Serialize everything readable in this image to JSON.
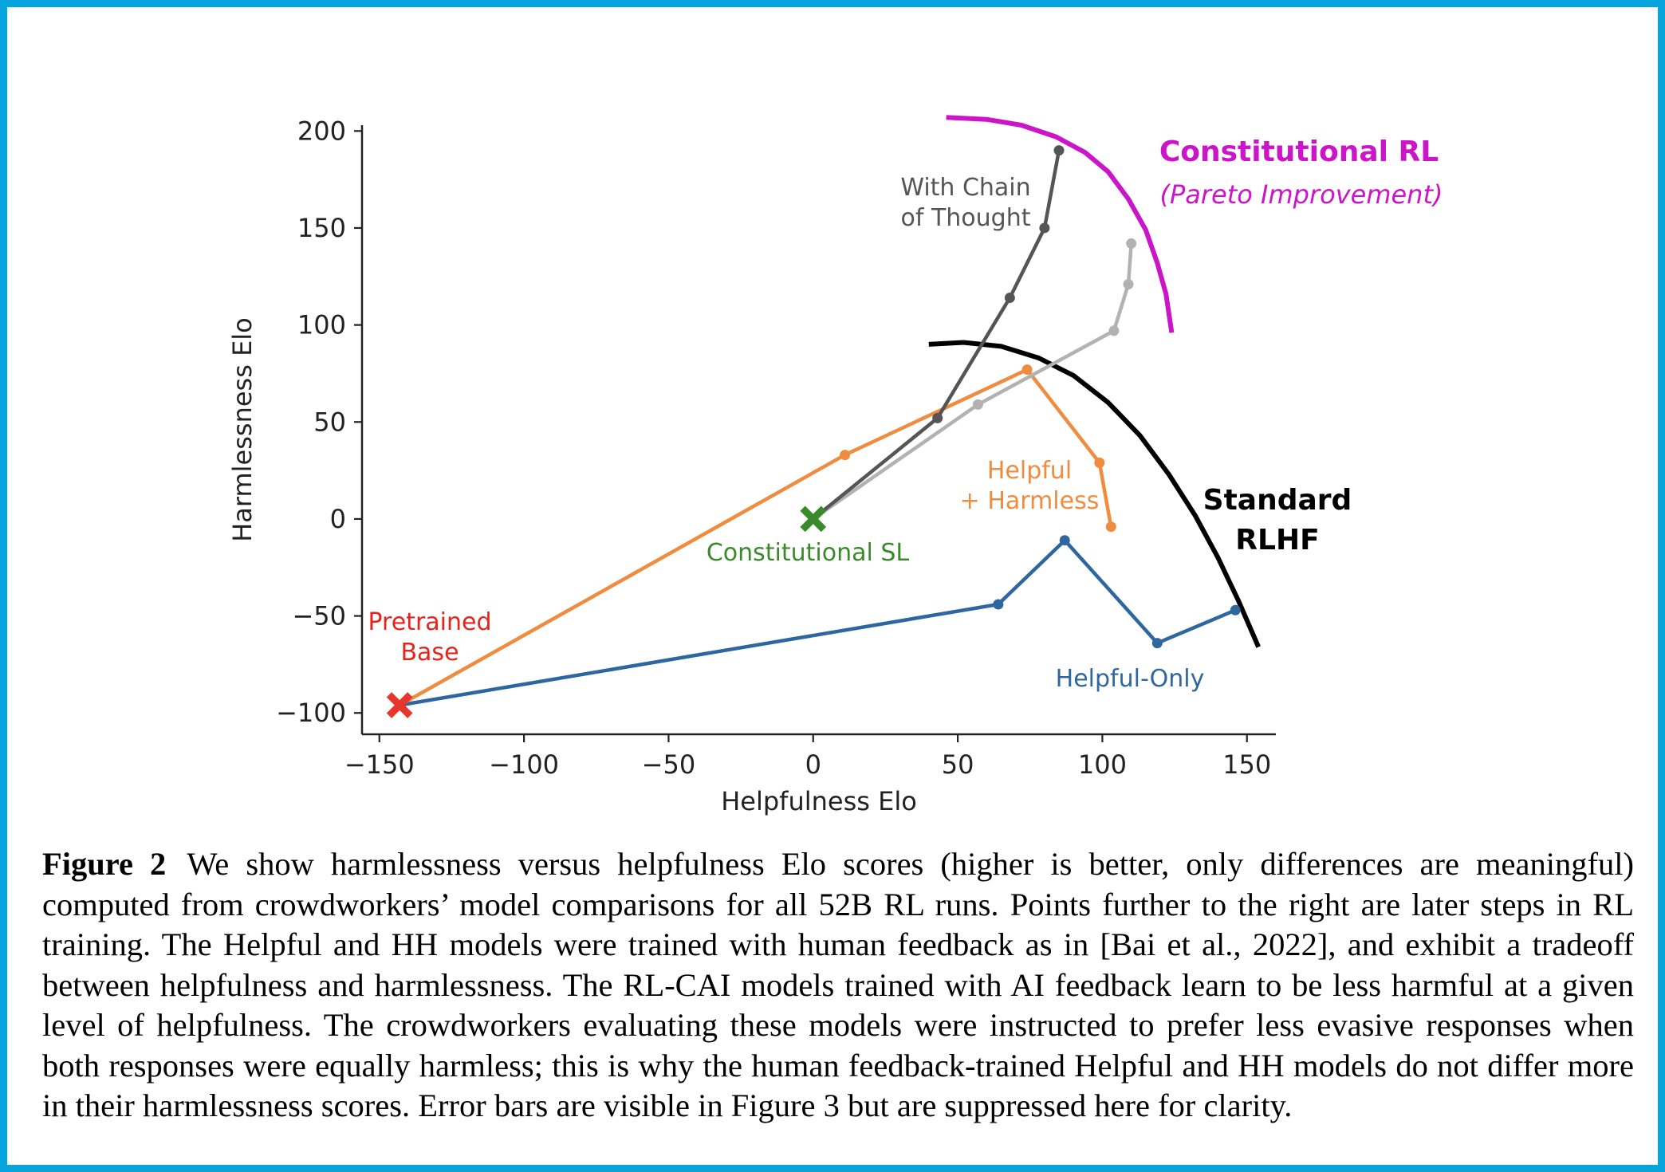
{
  "chart_data": {
    "type": "line",
    "xlabel": "Helpfulness Elo",
    "ylabel": "Harmlessness Elo",
    "xlim": [
      -156,
      160
    ],
    "ylim": [
      -111,
      203
    ],
    "xticks": [
      -150,
      -100,
      -50,
      0,
      50,
      100,
      150
    ],
    "yticks": [
      -100,
      -50,
      0,
      50,
      100,
      150,
      200
    ],
    "xtick_labels": [
      "−150",
      "−100",
      "−50",
      "0",
      "50",
      "100",
      "150"
    ],
    "ytick_labels": [
      "−100",
      "−50",
      "0",
      "50",
      "100",
      "150",
      "200"
    ],
    "grid": false,
    "series": [
      {
        "name": "Helpful-Only",
        "color": "#2e67a0",
        "points": [
          [
            -143,
            -96
          ],
          [
            64,
            -44
          ],
          [
            87,
            -11
          ],
          [
            119,
            -64
          ],
          [
            146,
            -47
          ]
        ]
      },
      {
        "name": "Helpful + Harmless",
        "color": "#ef8c3f",
        "points": [
          [
            -143,
            -96
          ],
          [
            11,
            33
          ],
          [
            74,
            77
          ],
          [
            99,
            29
          ],
          [
            103,
            -4
          ]
        ]
      },
      {
        "name": "",
        "color": "#b2b2b2",
        "points": [
          [
            0,
            0
          ],
          [
            57,
            59
          ],
          [
            104,
            97
          ],
          [
            109,
            121
          ],
          [
            110,
            142
          ]
        ]
      },
      {
        "name": "With Chain of Thought",
        "color": "#555555",
        "points": [
          [
            0,
            0
          ],
          [
            43,
            52
          ],
          [
            68,
            114
          ],
          [
            80,
            150
          ],
          [
            85,
            190
          ]
        ]
      }
    ],
    "markers": [
      {
        "label": "Pretrained Base",
        "x": -143,
        "y": -96,
        "color": "#e8362a",
        "symbol": "X"
      },
      {
        "label": "Constitutional SL",
        "x": 0,
        "y": 0,
        "color": "#3a8a2c",
        "symbol": "X"
      }
    ],
    "frontiers": [
      {
        "label": "Standard RLHF",
        "color": "#000000",
        "points": [
          [
            40,
            90
          ],
          [
            52,
            91
          ],
          [
            65,
            89
          ],
          [
            78,
            83
          ],
          [
            90,
            74
          ],
          [
            102,
            60
          ],
          [
            113,
            43
          ],
          [
            123,
            23
          ],
          [
            132,
            2
          ],
          [
            140,
            -20
          ],
          [
            147,
            -42
          ],
          [
            154,
            -66
          ]
        ]
      },
      {
        "label": "Constitutional RL",
        "sublabel": "(Pareto Improvement)",
        "color": "#cc14c8",
        "points": [
          [
            46,
            207
          ],
          [
            60,
            206
          ],
          [
            72,
            203
          ],
          [
            84,
            197
          ],
          [
            94,
            189
          ],
          [
            102,
            179
          ],
          [
            109,
            165
          ],
          [
            115,
            149
          ],
          [
            119,
            132
          ],
          [
            122,
            116
          ],
          [
            124,
            96
          ]
        ]
      }
    ],
    "annotations": {
      "pretrained_base": [
        "Pretrained",
        "Base"
      ],
      "constitutional_sl": "Constitutional SL",
      "chain_of_thought": [
        "With Chain",
        "of Thought"
      ],
      "helpful_harmless": [
        "Helpful",
        "+ Harmless"
      ],
      "helpful_only": "Helpful-Only",
      "standard_rlhf": [
        "Standard",
        "RLHF"
      ],
      "constitutional_rl": "Constitutional RL",
      "pareto": "(Pareto Improvement)"
    }
  },
  "caption": {
    "label": "Figure 2",
    "text": "We show harmlessness versus helpfulness Elo scores (higher is better, only differences are meaningful) computed from crowdworkers’ model comparisons for all 52B RL runs.  Points further to the right are later steps in RL training.  The Helpful and HH models were trained with human feedback as in [Bai et al., 2022], and exhibit a tradeoff between helpfulness and harmlessness. The RL-CAI models trained with AI feedback learn to be less harmful at a given level of helpfulness. The crowdworkers evaluating these models were instructed to prefer less evasive responses when both responses were equally harmless; this is why the human feedback-trained Helpful and HH models do not differ more in their harmlessness scores. Error bars are visible in Figure 3 but are suppressed here for clarity."
  }
}
